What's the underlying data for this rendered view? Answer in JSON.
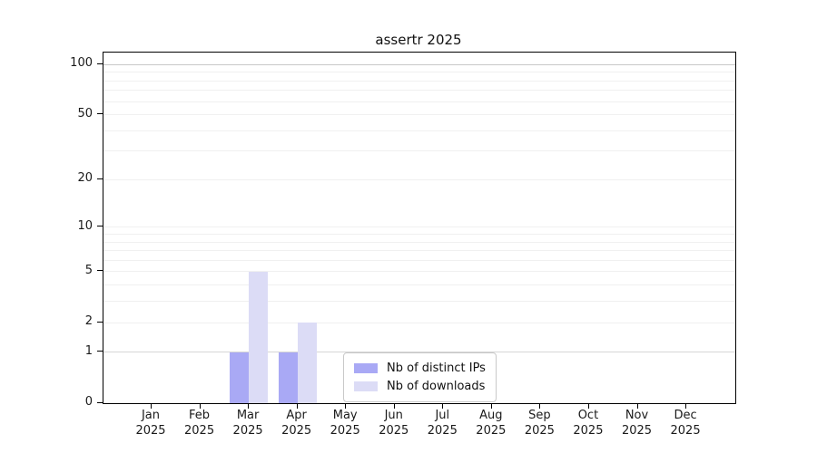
{
  "title": "assertr 2025",
  "chart_data": {
    "type": "bar",
    "title": "assertr 2025",
    "categories": [
      "Jan",
      "Feb",
      "Mar",
      "Apr",
      "May",
      "Jun",
      "Jul",
      "Aug",
      "Sep",
      "Oct",
      "Nov",
      "Dec"
    ],
    "category_year": "2025",
    "series": [
      {
        "name": "Nb of distinct IPs",
        "color": "#a9a9f5",
        "values": [
          0,
          0,
          1,
          1,
          0,
          0,
          0,
          0,
          0,
          0,
          0,
          0
        ]
      },
      {
        "name": "Nb of downloads",
        "color": "#dcdcf6",
        "values": [
          0,
          0,
          5,
          2,
          0,
          0,
          0,
          0,
          0,
          0,
          0,
          0
        ]
      }
    ],
    "xlabel": "",
    "ylabel": "",
    "yscale": "log1p",
    "ylim": [
      0,
      118
    ],
    "yticks": [
      0,
      1,
      2,
      5,
      10,
      20,
      50,
      100
    ],
    "minor_gridlines": [
      1,
      2,
      3,
      4,
      5,
      6,
      7,
      8,
      9,
      10,
      20,
      30,
      40,
      50,
      60,
      70,
      80,
      90,
      100
    ],
    "grid": "horizontal-minor",
    "legend_position": "inside-bottom-center"
  },
  "colors": {
    "background": "#ffffff",
    "axis": "#000000",
    "gridline_minor": "#f0f0f0",
    "gridline_one": "#d6d6d6",
    "gridline_hundred": "#c8c8c8",
    "bar_ips": "#a9a9f5",
    "bar_downloads": "#dcdcf6"
  }
}
